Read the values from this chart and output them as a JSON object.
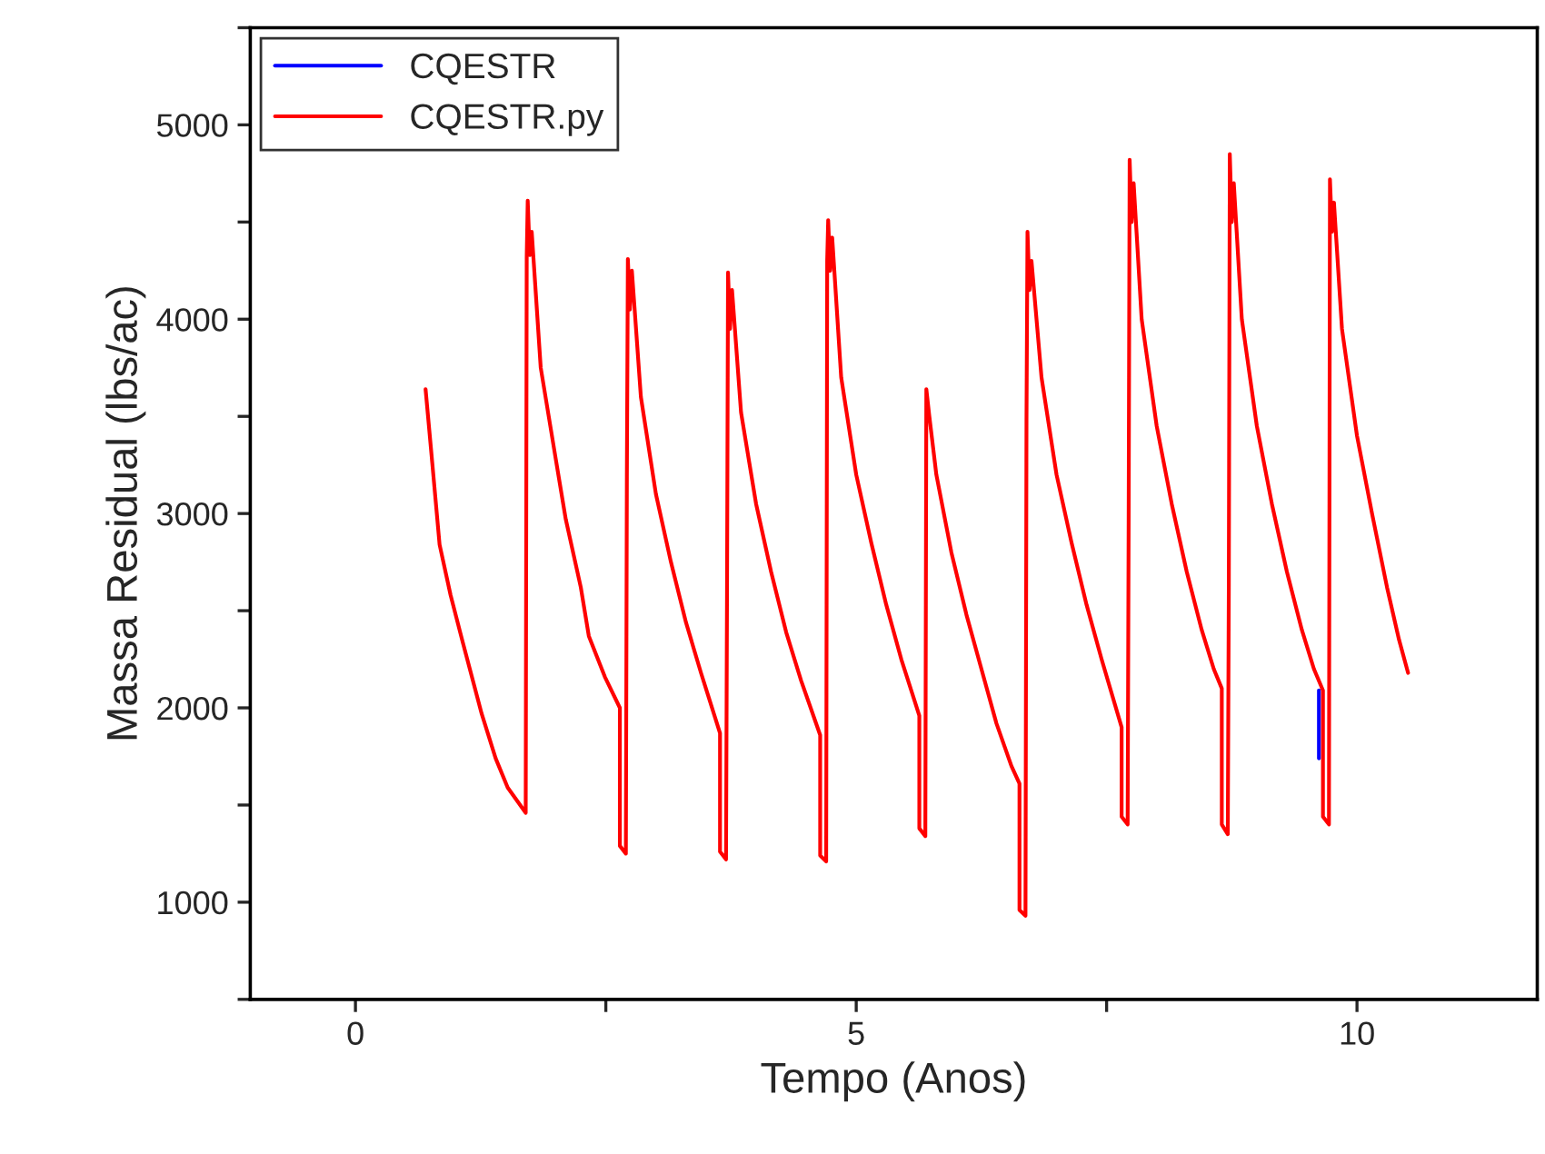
{
  "chart_data": {
    "type": "line",
    "xlabel": "Tempo (Anos)",
    "ylabel": "Massa Residual (lbs/ac)",
    "xlim": [
      -1.05,
      11.8
    ],
    "xticks": [
      0,
      {
        "value": 2.5,
        "label": null
      },
      5,
      {
        "value": 7.5,
        "label": null
      },
      10
    ],
    "ylim": [
      500,
      5500
    ],
    "yticks": [
      {
        "value": 500,
        "label": null
      },
      1000,
      {
        "value": 1500,
        "label": null
      },
      2000,
      {
        "value": 2500,
        "label": null
      },
      3000,
      {
        "value": 3500,
        "label": null
      },
      4000,
      {
        "value": 4500,
        "label": null
      },
      5000,
      {
        "value": 5500,
        "label": null
      }
    ],
    "grid": false,
    "legend": "top left",
    "marker": "none",
    "line_style": "solid",
    "series": [
      {
        "name": "CQESTR",
        "color": "#0000ff",
        "x": [
          9.62,
          9.62
        ],
        "values": [
          2090,
          1740
        ]
      },
      {
        "name": "CQESTR.py",
        "color": "#ff0000",
        "x": [
          0.7,
          0.76,
          0.84,
          0.95,
          1.07,
          1.26,
          1.4,
          1.52,
          1.7,
          1.71,
          1.72,
          1.74,
          1.76,
          1.85,
          2.0,
          2.1,
          2.25,
          2.33,
          2.49,
          2.64,
          2.64,
          2.7,
          2.71,
          2.72,
          2.74,
          2.76,
          2.85,
          3.0,
          3.15,
          3.3,
          3.45,
          3.64,
          3.64,
          3.7,
          3.71,
          3.72,
          3.74,
          3.76,
          3.85,
          4.0,
          4.15,
          4.3,
          4.45,
          4.64,
          4.64,
          4.7,
          4.71,
          4.72,
          4.74,
          4.76,
          4.85,
          5.0,
          5.15,
          5.3,
          5.45,
          5.63,
          5.63,
          5.69,
          5.7,
          5.73,
          5.8,
          5.95,
          6.1,
          6.25,
          6.4,
          6.55,
          6.63,
          6.63,
          6.69,
          6.7,
          6.71,
          6.73,
          6.75,
          6.85,
          7.0,
          7.15,
          7.3,
          7.45,
          7.65,
          7.65,
          7.71,
          7.72,
          7.73,
          7.75,
          7.77,
          7.85,
          8.0,
          8.15,
          8.3,
          8.45,
          8.57,
          8.65,
          8.65,
          8.71,
          8.72,
          8.73,
          8.75,
          8.77,
          8.85,
          9.0,
          9.15,
          9.3,
          9.45,
          9.57,
          9.66,
          9.66,
          9.72,
          9.73,
          9.75,
          9.77,
          9.85,
          10.0,
          10.15,
          10.3,
          10.42,
          10.51
        ],
        "values": [
          3640,
          3300,
          2840,
          2580,
          2340,
          1970,
          1740,
          1590,
          1460,
          4320,
          4610,
          4330,
          4450,
          3750,
          3280,
          2970,
          2620,
          2370,
          2160,
          2000,
          1290,
          1250,
          3190,
          4310,
          4050,
          4250,
          3600,
          3100,
          2750,
          2440,
          2180,
          1870,
          1260,
          1220,
          2600,
          4240,
          3950,
          4150,
          3520,
          3050,
          2700,
          2390,
          2140,
          1860,
          1240,
          1210,
          4300,
          4510,
          4250,
          4420,
          3700,
          3200,
          2850,
          2530,
          2250,
          1960,
          1380,
          1340,
          3640,
          3500,
          3200,
          2800,
          2480,
          2200,
          1920,
          1700,
          1610,
          960,
          930,
          3480,
          4450,
          4150,
          4300,
          3700,
          3200,
          2850,
          2530,
          2250,
          1900,
          1440,
          1400,
          2950,
          4820,
          4500,
          4700,
          4000,
          3450,
          3050,
          2700,
          2400,
          2200,
          2100,
          1400,
          1350,
          2600,
          4850,
          4500,
          4700,
          4000,
          3450,
          3050,
          2700,
          2400,
          2200,
          2090,
          1440,
          1400,
          4720,
          4450,
          4600,
          3950,
          3400,
          3000,
          2620,
          2350,
          2180
        ]
      }
    ]
  }
}
